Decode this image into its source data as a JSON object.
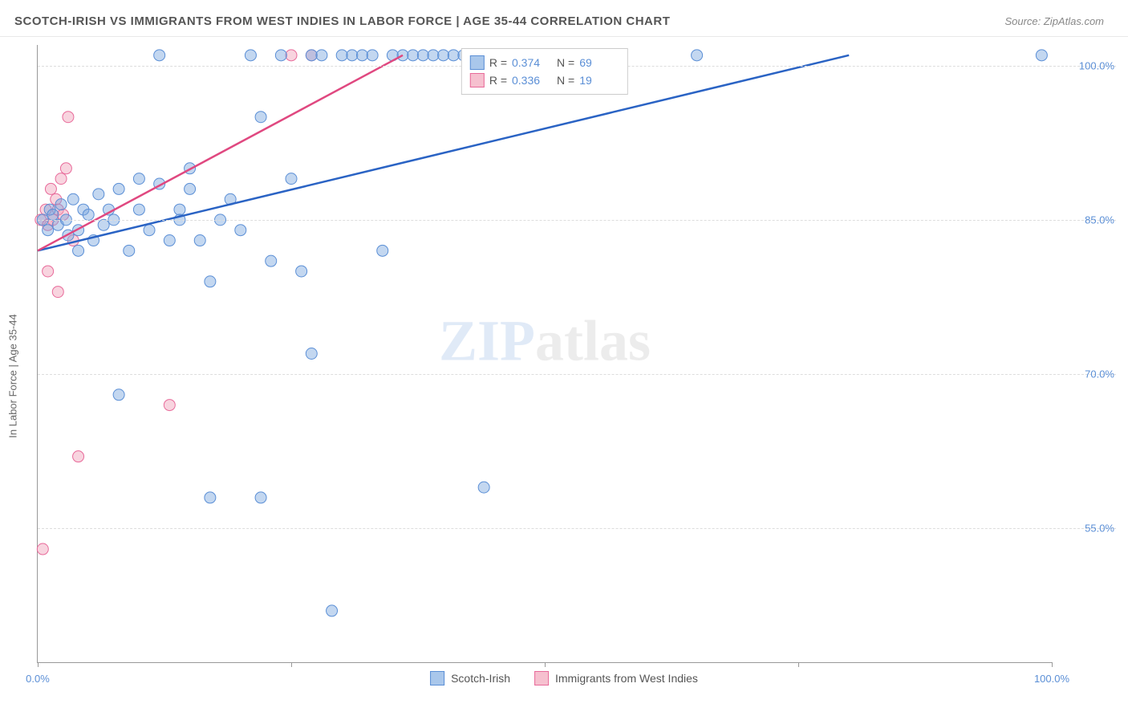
{
  "header": {
    "title": "SCOTCH-IRISH VS IMMIGRANTS FROM WEST INDIES IN LABOR FORCE | AGE 35-44 CORRELATION CHART",
    "source": "Source: ZipAtlas.com"
  },
  "axes": {
    "ylabel": "In Labor Force | Age 35-44",
    "xmin": 0,
    "xmax": 100,
    "ymin": 42,
    "ymax": 102,
    "yticks": [
      {
        "v": 55,
        "label": "55.0%"
      },
      {
        "v": 70,
        "label": "70.0%"
      },
      {
        "v": 85,
        "label": "85.0%"
      },
      {
        "v": 100,
        "label": "100.0%"
      }
    ],
    "xticks_lines": [
      0,
      25,
      50,
      75,
      100
    ],
    "xticks_labels": [
      {
        "v": 0,
        "label": "0.0%"
      },
      {
        "v": 100,
        "label": "100.0%"
      }
    ]
  },
  "watermark": {
    "part1": "ZIP",
    "part2": "atlas"
  },
  "legend_top": {
    "rows": [
      {
        "swatch_fill": "#a9c7eb",
        "swatch_border": "#5b8fd6",
        "r_label": "R =",
        "r_value": "0.374",
        "n_label": "N =",
        "n_value": "69"
      },
      {
        "swatch_fill": "#f6c0cf",
        "swatch_border": "#e86a9a",
        "r_label": "R =",
        "r_value": "0.336",
        "n_label": "N =",
        "n_value": "19"
      }
    ]
  },
  "legend_bottom": {
    "items": [
      {
        "swatch_fill": "#a9c7eb",
        "swatch_border": "#5b8fd6",
        "label": "Scotch-Irish"
      },
      {
        "swatch_fill": "#f6c0cf",
        "swatch_border": "#e86a9a",
        "label": "Immigrants from West Indies"
      }
    ]
  },
  "series": [
    {
      "name": "Scotch-Irish",
      "fill": "rgba(123,167,222,0.45)",
      "stroke": "#5b8fd6",
      "regression": {
        "x1": 0,
        "y1": 82,
        "x2": 80,
        "y2": 101,
        "color": "#2a63c4",
        "width": 2.5
      },
      "points": [
        [
          0.5,
          85
        ],
        [
          1,
          84
        ],
        [
          1.2,
          86
        ],
        [
          1.5,
          85.5
        ],
        [
          2,
          84.5
        ],
        [
          2.3,
          86.5
        ],
        [
          2.8,
          85
        ],
        [
          3,
          83.5
        ],
        [
          3.5,
          87
        ],
        [
          4,
          84
        ],
        [
          4.5,
          86
        ],
        [
          5,
          85.5
        ],
        [
          5.5,
          83
        ],
        [
          6,
          87.5
        ],
        [
          6.5,
          84.5
        ],
        [
          7,
          86
        ],
        [
          7.5,
          85
        ],
        [
          8,
          88
        ],
        [
          4,
          82
        ],
        [
          10,
          89
        ],
        [
          11,
          84
        ],
        [
          12,
          88.5
        ],
        [
          13,
          83
        ],
        [
          14,
          86
        ],
        [
          15,
          90
        ],
        [
          8,
          68
        ],
        [
          9,
          82
        ],
        [
          10,
          86
        ],
        [
          12,
          101
        ],
        [
          14,
          85
        ],
        [
          15,
          88
        ],
        [
          16,
          83
        ],
        [
          17,
          79
        ],
        [
          18,
          85
        ],
        [
          19,
          87
        ],
        [
          20,
          84
        ],
        [
          21,
          101
        ],
        [
          22,
          95
        ],
        [
          23,
          81
        ],
        [
          24,
          101
        ],
        [
          25,
          89
        ],
        [
          26,
          80
        ],
        [
          27,
          101
        ],
        [
          28,
          101
        ],
        [
          29,
          47
        ],
        [
          30,
          101
        ],
        [
          31,
          101
        ],
        [
          32,
          101
        ],
        [
          33,
          101
        ],
        [
          34,
          82
        ],
        [
          35,
          101
        ],
        [
          36,
          101
        ],
        [
          37,
          101
        ],
        [
          38,
          101
        ],
        [
          39,
          101
        ],
        [
          40,
          101
        ],
        [
          41,
          101
        ],
        [
          42,
          101
        ],
        [
          43,
          101
        ],
        [
          44,
          101
        ],
        [
          46,
          101
        ],
        [
          48,
          101
        ],
        [
          50,
          101
        ],
        [
          17,
          58
        ],
        [
          22,
          58
        ],
        [
          44,
          59
        ],
        [
          27,
          72
        ],
        [
          65,
          101
        ],
        [
          99,
          101
        ]
      ]
    },
    {
      "name": "Immigrants from West Indies",
      "fill": "rgba(240,160,185,0.45)",
      "stroke": "#e86a9a",
      "regression": {
        "x1": 0,
        "y1": 82,
        "x2": 36,
        "y2": 101,
        "color": "#e04880",
        "width": 2.5
      },
      "points": [
        [
          0.3,
          85
        ],
        [
          0.8,
          86
        ],
        [
          1,
          84.5
        ],
        [
          1.3,
          88
        ],
        [
          1.5,
          85
        ],
        [
          1.8,
          87
        ],
        [
          2,
          86
        ],
        [
          2.3,
          89
        ],
        [
          2.5,
          85.5
        ],
        [
          2.8,
          90
        ],
        [
          3,
          95
        ],
        [
          1,
          80
        ],
        [
          2,
          78
        ],
        [
          0.5,
          53
        ],
        [
          4,
          62
        ],
        [
          3.5,
          83
        ],
        [
          13,
          67
        ],
        [
          25,
          101
        ],
        [
          27,
          101
        ]
      ]
    }
  ],
  "marker_radius": 7
}
